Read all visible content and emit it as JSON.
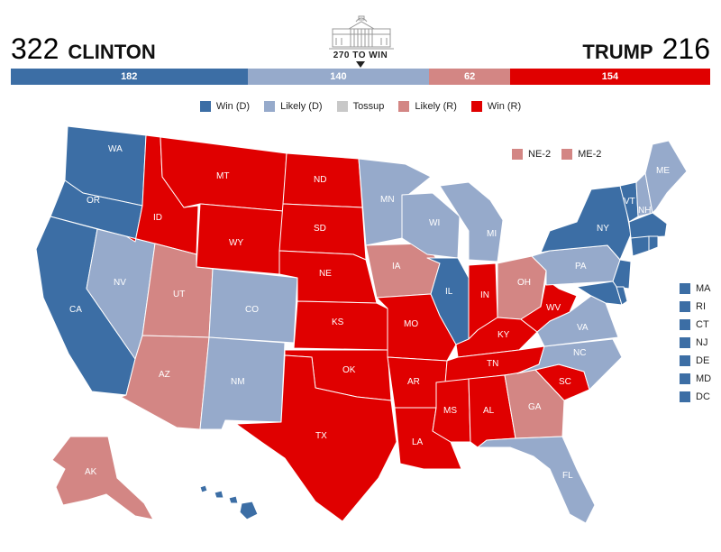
{
  "header": {
    "dem_total": "322",
    "dem_name": "CLINTON",
    "rep_total": "216",
    "rep_name": "TRUMP",
    "threshold_label": "270 TO WIN"
  },
  "bar": [
    {
      "label": "182",
      "value": 182,
      "color": "#3c6ea5"
    },
    {
      "label": "140",
      "value": 140,
      "color": "#96aacb"
    },
    {
      "label": "62",
      "value": 62,
      "color": "#d38684"
    },
    {
      "label": "154",
      "value": 154,
      "color": "#e00000"
    }
  ],
  "legend": [
    {
      "label": "Win (D)",
      "color": "#3c6ea5"
    },
    {
      "label": "Likely (D)",
      "color": "#96aacb"
    },
    {
      "label": "Tossup",
      "color": "#c8c8c8"
    },
    {
      "label": "Likely (R)",
      "color": "#d38684"
    },
    {
      "label": "Win (R)",
      "color": "#e00000"
    }
  ],
  "districts": [
    {
      "label": "NE-2",
      "color": "#d38684"
    },
    {
      "label": "ME-2",
      "color": "#d38684"
    }
  ],
  "small_states": [
    {
      "label": "MA",
      "color": "#3c6ea5"
    },
    {
      "label": "RI",
      "color": "#3c6ea5"
    },
    {
      "label": "CT",
      "color": "#3c6ea5"
    },
    {
      "label": "NJ",
      "color": "#3c6ea5"
    },
    {
      "label": "DE",
      "color": "#3c6ea5"
    },
    {
      "label": "MD",
      "color": "#3c6ea5"
    },
    {
      "label": "DC",
      "color": "#3c6ea5"
    }
  ],
  "colors": {
    "win_d": "#3c6ea5",
    "likely_d": "#96aacb",
    "likely_r": "#d38684",
    "win_r": "#e00000"
  },
  "states": {
    "WA": "WA",
    "OR": "OR",
    "CA": "CA",
    "NV": "NV",
    "ID": "ID",
    "MT": "MT",
    "WY": "WY",
    "UT": "UT",
    "AZ": "AZ",
    "CO": "CO",
    "NM": "NM",
    "ND": "ND",
    "SD": "SD",
    "NE": "NE",
    "KS": "KS",
    "OK": "OK",
    "TX": "TX",
    "MN": "MN",
    "IA": "IA",
    "MO": "MO",
    "AR": "AR",
    "LA": "LA",
    "WI": "WI",
    "IL": "IL",
    "MI": "MI",
    "IN": "IN",
    "OH": "OH",
    "KY": "KY",
    "TN": "TN",
    "MS": "MS",
    "AL": "AL",
    "GA": "GA",
    "FL": "FL",
    "SC": "SC",
    "NC": "NC",
    "VA": "VA",
    "WV": "WV",
    "PA": "PA",
    "NY": "NY",
    "VT": "VT",
    "NH": "NH",
    "ME": "ME",
    "AK": "AK"
  }
}
